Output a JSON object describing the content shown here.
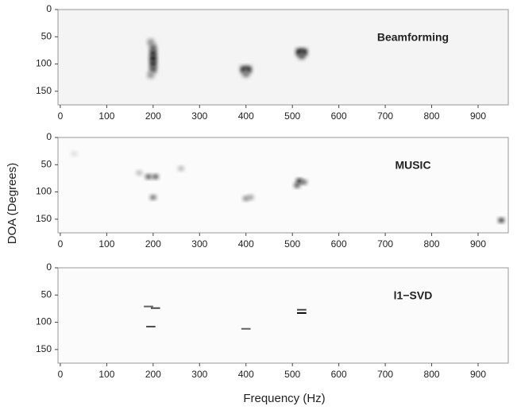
{
  "chart_data": [
    {
      "type": "heatmap",
      "title": "Beamforming",
      "colormap": "gray",
      "x": [
        195,
        200,
        200,
        200,
        200,
        200,
        195,
        395,
        405,
        400,
        515,
        525,
        520
      ],
      "y": [
        60,
        70,
        80,
        90,
        100,
        110,
        120,
        110,
        110,
        118,
        78,
        78,
        85
      ],
      "values": [
        0.4,
        0.6,
        0.8,
        0.9,
        0.85,
        0.7,
        0.4,
        0.8,
        0.8,
        0.5,
        0.9,
        0.85,
        0.6
      ],
      "xlim": [
        -5,
        965
      ],
      "ylim": [
        0,
        175
      ],
      "xticks": [
        0,
        100,
        200,
        300,
        400,
        500,
        600,
        700,
        800,
        900
      ],
      "yticks": [
        0,
        50,
        100,
        150
      ]
    },
    {
      "type": "heatmap",
      "title": "MUSIC",
      "colormap": "gray",
      "ylabel": "DOA (Degrees)",
      "x": [
        170,
        190,
        205,
        200,
        260,
        400,
        410,
        515,
        525,
        510,
        950,
        30
      ],
      "y": [
        65,
        72,
        72,
        110,
        57,
        112,
        110,
        80,
        82,
        88,
        152,
        30
      ],
      "values": [
        0.3,
        0.7,
        0.7,
        0.6,
        0.3,
        0.5,
        0.4,
        0.95,
        0.6,
        0.7,
        0.8,
        0.15
      ],
      "xlim": [
        -5,
        965
      ],
      "ylim": [
        0,
        175
      ],
      "xticks": [
        0,
        100,
        200,
        300,
        400,
        500,
        600,
        700,
        800,
        900
      ],
      "yticks": [
        0,
        50,
        100,
        150
      ]
    },
    {
      "type": "heatmap",
      "title": "l1−SVD",
      "colormap": "gray",
      "xlabel": "Frequency (Hz)",
      "x": [
        190,
        205,
        195,
        400,
        520,
        520
      ],
      "y": [
        71,
        74,
        108,
        112,
        77,
        83
      ],
      "values": [
        0.6,
        0.7,
        0.7,
        0.6,
        0.7,
        0.95
      ],
      "xlim": [
        -5,
        965
      ],
      "ylim": [
        0,
        175
      ],
      "xticks": [
        0,
        100,
        200,
        300,
        400,
        500,
        600,
        700,
        800,
        900
      ],
      "yticks": [
        0,
        50,
        100,
        150
      ]
    }
  ]
}
